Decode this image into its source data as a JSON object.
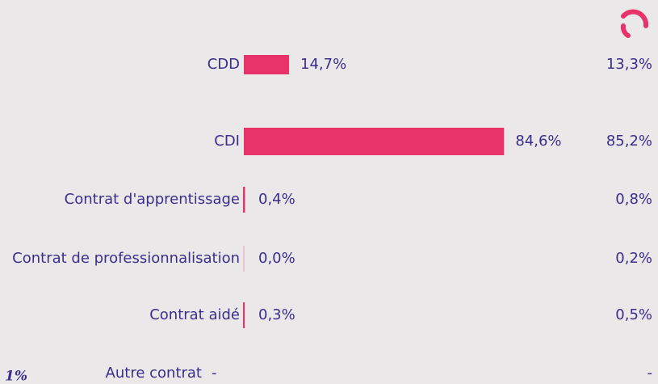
{
  "chart_data": {
    "type": "bar",
    "orientation": "horizontal",
    "categories": [
      "CDD",
      "CDI",
      "Contrat d'apprentissage",
      "Contrat de professionnalisation",
      "Contrat aidé",
      "Autre contrat"
    ],
    "xlim": [
      0,
      100
    ],
    "series": [
      {
        "color": "#e8336a",
        "values": [
          14.7,
          84.6,
          0.4,
          0.0,
          0.3,
          null
        ],
        "value_labels": [
          "14,7%",
          "84,6%",
          "0,4%",
          "0,0%",
          "0,3%",
          "-"
        ]
      },
      {
        "values": [
          13.3,
          85.2,
          0.8,
          0.2,
          0.5,
          null
        ],
        "value_labels": [
          "13,3%",
          "85,2%",
          "0,8%",
          "0,2%",
          "0,5%",
          "-"
        ]
      }
    ],
    "annotation": "1%"
  }
}
